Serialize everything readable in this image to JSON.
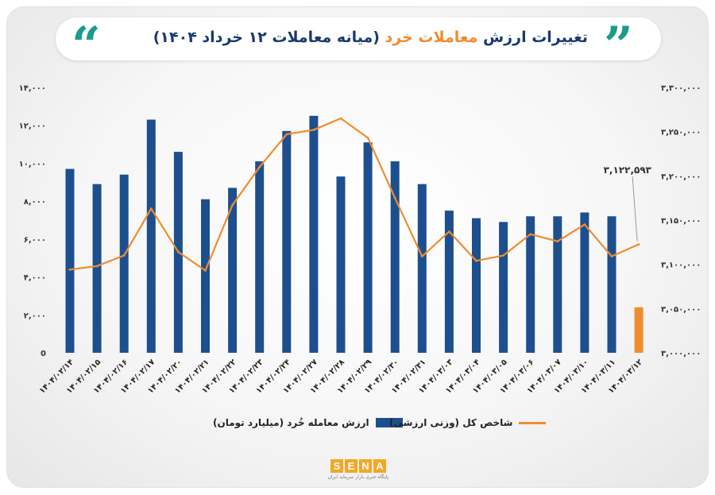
{
  "header": {
    "title_part1": "تغییرات ارزش",
    "title_accent": "معاملات خرد",
    "title_part2": "(میانه معاملات ۱۲ خرداد ۱۴۰۴)",
    "quote_left": "“",
    "quote_right": "”"
  },
  "colors": {
    "bars": "#1d4f8f",
    "highlight_bar": "#f08c2e",
    "line": "#f08c2e",
    "quote": "#1a9c8c"
  },
  "chart_data": {
    "type": "bar",
    "categories": [
      "۱۴۰۴/۰۲/۱۴",
      "۱۴۰۴/۰۲/۱۵",
      "۱۴۰۴/۰۲/۱۶",
      "۱۴۰۴/۰۲/۱۷",
      "۱۴۰۴/۰۲/۲۰",
      "۱۴۰۴/۰۲/۲۱",
      "۱۴۰۴/۰۲/۲۲",
      "۱۴۰۴/۰۲/۲۳",
      "۱۴۰۴/۰۲/۲۴",
      "۱۴۰۴/۰۲/۲۷",
      "۱۴۰۴/۰۲/۲۸",
      "۱۴۰۴/۰۲/۲۹",
      "۱۴۰۴/۰۲/۳۰",
      "۱۴۰۴/۰۲/۳۱",
      "۱۴۰۴/۰۳/۰۳",
      "۱۴۰۴/۰۳/۰۴",
      "۱۴۰۴/۰۳/۰۵",
      "۱۴۰۴/۰۳/۰۶",
      "۱۴۰۴/۰۳/۰۷",
      "۱۴۰۴/۰۳/۱۰",
      "۱۴۰۴/۰۳/۱۱",
      "۱۴۰۴/۰۳/۱۲"
    ],
    "series": [
      {
        "name": "ارزش معامله خُرد (میلیارد تومان)",
        "axis": "left",
        "values": [
          9700,
          8900,
          9400,
          12300,
          10600,
          8100,
          8700,
          10100,
          11700,
          12500,
          9300,
          11100,
          10100,
          8900,
          7500,
          7100,
          6900,
          7200,
          7200,
          7400,
          7200,
          2400
        ]
      },
      {
        "name": "شاخص کل (وزنی ارزشی)",
        "axis": "right",
        "type": "line",
        "values": [
          3094000,
          3098000,
          3110000,
          3163000,
          3114000,
          3093000,
          3167000,
          3210000,
          3247000,
          3252000,
          3265000,
          3243000,
          3175000,
          3109000,
          3137000,
          3104000,
          3110000,
          3134000,
          3126000,
          3145000,
          3109000,
          3122593
        ]
      }
    ],
    "y_left": {
      "min": 0,
      "max": 14000,
      "ticks": [
        "0",
        "۲,۰۰۰",
        "۴,۰۰۰",
        "۶,۰۰۰",
        "۸,۰۰۰",
        "۱۰,۰۰۰",
        "۱۲,۰۰۰",
        "۱۴,۰۰۰"
      ]
    },
    "y_right": {
      "min": 3000000,
      "max": 3300000,
      "ticks": [
        "۳,۰۰۰,۰۰۰",
        "۳,۰۵۰,۰۰۰",
        "۳,۱۰۰,۰۰۰",
        "۳,۱۵۰,۰۰۰",
        "۳,۲۰۰,۰۰۰",
        "۳,۲۵۰,۰۰۰",
        "۳,۳۰۰,۰۰۰"
      ]
    },
    "annotation": "۳,۱۲۲,۵۹۳",
    "legend_position": "bottom",
    "grid": false
  },
  "logo": {
    "letters": [
      "S",
      "E",
      "N",
      "A"
    ],
    "subtitle": "پایگاه خبری بازار سرمایه ایران"
  }
}
